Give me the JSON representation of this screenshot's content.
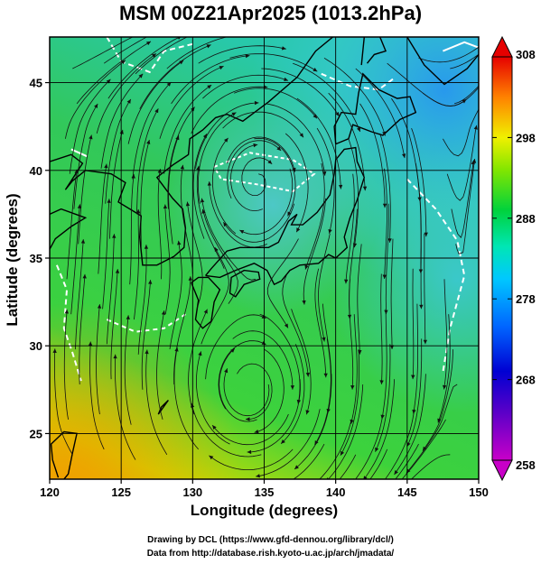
{
  "title": "MSM 00Z21Apr2025 (1013.2hPa)",
  "map": {
    "xlabel": "Longitude (degrees)",
    "ylabel": "Latitude  (degrees)",
    "lon_range": [
      120,
      150
    ],
    "lat_range": [
      22.4,
      47.6
    ],
    "lon_ticks": [
      120,
      125,
      130,
      135,
      140,
      145,
      150
    ],
    "lat_ticks": [
      25,
      30,
      35,
      40,
      45
    ],
    "lon_tick_labels": [
      "120",
      "125",
      "130",
      "135",
      "140",
      "145",
      "150"
    ],
    "lat_tick_labels": [
      "25",
      "30",
      "35",
      "40",
      "45"
    ],
    "grid": true,
    "field": "temperature (K)",
    "overlay": "streamlines of wind"
  },
  "colorbar": {
    "min": 258,
    "max": 308,
    "labels": [
      "308",
      "298",
      "288",
      "278",
      "268",
      "258"
    ],
    "label_values": [
      308,
      298,
      288,
      278,
      268,
      258
    ],
    "extend": "both"
  },
  "credits": {
    "line1": "Drawing by DCL (https://www.gfd-dennou.org/library/dcl/)",
    "line2": "Data from http://database.rish.kyoto-u.ac.jp/arch/jmadata/"
  }
}
